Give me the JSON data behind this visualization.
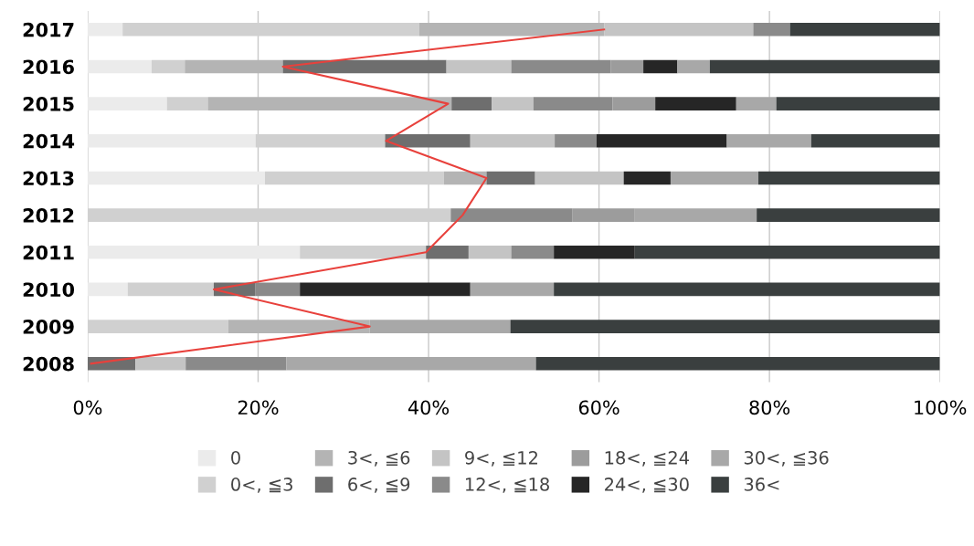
{
  "chart_data": {
    "type": "bar",
    "orientation": "horizontal",
    "stacked": true,
    "categories": [
      "2017",
      "2016",
      "2015",
      "2014",
      "2013",
      "2012",
      "2011",
      "2010",
      "2009",
      "2008"
    ],
    "series": [
      {
        "name": "0",
        "color": "#ebebeb",
        "values": [
          4.1,
          7.5,
          9.3,
          19.7,
          20.8,
          null,
          24.9,
          4.7,
          null,
          null
        ]
      },
      {
        "name": "0<, ≦3",
        "color": "#d0d0d0",
        "values": [
          34.8,
          3.9,
          4.8,
          15.2,
          21.0,
          42.6,
          14.8,
          10.1,
          16.5,
          null
        ]
      },
      {
        "name": "3<, ≦6",
        "color": "#b4b4b4",
        "values": [
          21.7,
          11.5,
          28.6,
          null,
          5.0,
          null,
          null,
          null,
          16.6,
          null
        ]
      },
      {
        "name": "6<, ≦9",
        "color": "#6e6e6e",
        "values": [
          null,
          19.2,
          4.7,
          10.0,
          5.7,
          null,
          5.0,
          4.9,
          null,
          5.6
        ]
      },
      {
        "name": "9<, ≦12",
        "color": "#c4c4c4",
        "values": [
          17.5,
          7.6,
          4.9,
          9.9,
          10.4,
          null,
          5.0,
          null,
          null,
          5.9
        ]
      },
      {
        "name": "12<, ≦18",
        "color": "#8a8a8a",
        "values": [
          4.3,
          11.7,
          9.3,
          4.9,
          null,
          14.3,
          5.0,
          5.2,
          null,
          11.8
        ]
      },
      {
        "name": "18<, ≦24",
        "color": "#9c9c9c",
        "values": [
          null,
          3.8,
          5.0,
          null,
          null,
          7.3,
          null,
          null,
          null,
          null
        ]
      },
      {
        "name": "24<, ≦30",
        "color": "#262626",
        "values": [
          null,
          4.0,
          9.5,
          15.3,
          5.5,
          null,
          9.5,
          20.0,
          null,
          null
        ]
      },
      {
        "name": "30<, ≦36",
        "color": "#a8a8a8",
        "values": [
          null,
          3.8,
          4.7,
          9.9,
          10.3,
          14.3,
          null,
          9.8,
          16.5,
          29.3
        ]
      },
      {
        "name": "36<",
        "color": "#3a3f3f",
        "values": [
          17.6,
          27.0,
          19.2,
          15.1,
          21.3,
          21.5,
          35.8,
          45.3,
          50.4,
          47.4
        ]
      },
      {
        "type": "line",
        "color": "#e8413c",
        "values": [
          60.6,
          22.9,
          42.3,
          35.0,
          46.8,
          44.0,
          39.7,
          14.8,
          33.1,
          0.4
        ]
      }
    ],
    "xlim": [
      0,
      100
    ],
    "xticks": [
      {
        "value": 0,
        "label": "0%"
      },
      {
        "value": 20,
        "label": "20%"
      },
      {
        "value": 40,
        "label": "40%"
      },
      {
        "value": 60,
        "label": "60%"
      },
      {
        "value": 80,
        "label": "80%"
      },
      {
        "value": 100,
        "label": "100%"
      }
    ],
    "grid": "x",
    "legend": "bottom"
  }
}
